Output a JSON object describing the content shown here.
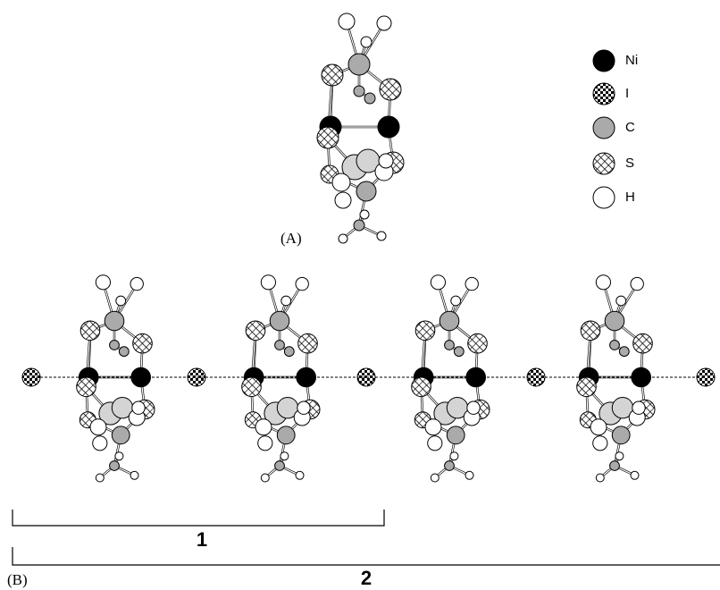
{
  "panels": {
    "a": "(A)",
    "b": "(B)"
  },
  "legend": [
    {
      "label": "Ni"
    },
    {
      "label": "I"
    },
    {
      "label": "C"
    },
    {
      "label": "S"
    },
    {
      "label": "H"
    }
  ],
  "brackets": [
    "1",
    "2"
  ]
}
